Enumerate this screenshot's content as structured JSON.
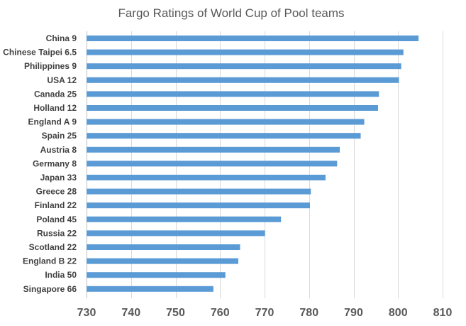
{
  "chart_data": {
    "type": "bar",
    "orientation": "horizontal",
    "title": "Fargo Ratings of World Cup of Pool teams",
    "xlabel": "",
    "ylabel": "",
    "xlim": [
      730,
      810
    ],
    "x_ticks": [
      730,
      740,
      750,
      760,
      770,
      780,
      790,
      800,
      810
    ],
    "grid": true,
    "legend": "none",
    "bar_color": "#5b9bd5",
    "categories": [
      "China 9",
      "Chinese Taipei 6.5",
      "Philippines 9",
      "USA 12",
      "Canada 25",
      "Holland 12",
      "England A 9",
      "Spain 25",
      "Austria 8",
      "Germany 8",
      "Japan 33",
      "Greece 28",
      "Finland 22",
      "Poland 45",
      "Russia 22",
      "Scotland 22",
      "England B 22",
      "India 50",
      "Singapore 66"
    ],
    "values": [
      804.6,
      801.2,
      800.7,
      800.2,
      795.7,
      795.5,
      792.4,
      791.6,
      786.9,
      786.3,
      783.7,
      780.4,
      780.2,
      773.7,
      770.1,
      764.5,
      764.1,
      761.2,
      758.5
    ]
  }
}
